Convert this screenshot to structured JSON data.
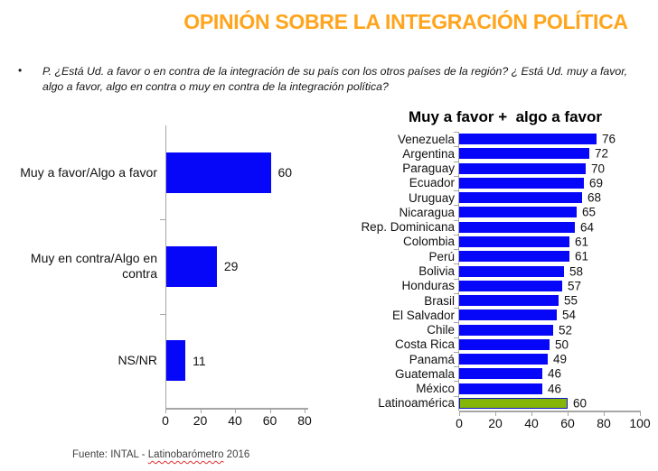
{
  "page": {
    "title": "OPINIÓN SOBRE LA INTEGRACIÓN POLÍTICA",
    "bullet_glyph": "•",
    "question": "P. ¿Está Ud. a favor o en contra de la integración de su país con los otros países de la región? ¿ Está Ud. muy a favor, algo a favor, algo en contra o muy en contra de la integración política?",
    "source": {
      "prefix": "Fuente: INTAL - ",
      "highlight": "Latinobarómetro",
      "suffix": " 2016"
    }
  },
  "colors": {
    "title-orange": "#FFA41C",
    "bar-blue": "#0606F8",
    "bar-green": "#84B507",
    "green-border": "#0D19C4",
    "axis-gray": "#A6A6A6"
  },
  "chart_data": [
    {
      "type": "bar",
      "orientation": "horizontal",
      "title": "",
      "categories": [
        "Muy a favor/Algo a favor",
        "Muy en contra/Algo en contra",
        "NS/NR"
      ],
      "values": [
        60,
        29,
        11
      ],
      "xlabel": "",
      "ylabel": "",
      "xlim": [
        0,
        80
      ],
      "xticks": [
        0,
        20,
        40,
        60,
        80
      ],
      "bar_color": "#0606F8",
      "grid": false,
      "value_labels": true,
      "legend": "none"
    },
    {
      "type": "bar",
      "orientation": "horizontal",
      "title": "Muy a favor +  algo a favor",
      "categories": [
        "Venezuela",
        "Argentina",
        "Paraguay",
        "Ecuador",
        "Uruguay",
        "Nicaragua",
        "Rep. Dominicana",
        "Colombia",
        "Perú",
        "Bolivia",
        "Honduras",
        "Brasil",
        "El Salvador",
        "Chile",
        "Costa Rica",
        "Panamá",
        "Guatemala",
        "México",
        "Latinoamérica"
      ],
      "values": [
        76,
        72,
        70,
        69,
        68,
        65,
        64,
        61,
        61,
        58,
        57,
        55,
        54,
        52,
        50,
        49,
        46,
        46,
        60
      ],
      "xlabel": "",
      "ylabel": "",
      "xlim": [
        0,
        100
      ],
      "xticks": [
        0,
        20,
        40,
        60,
        80,
        100
      ],
      "bar_color": "#0606F8",
      "highlight": {
        "index": 18,
        "color": "#84B507",
        "border": "#0D19C4"
      },
      "grid": false,
      "value_labels": true,
      "legend": "none"
    }
  ]
}
